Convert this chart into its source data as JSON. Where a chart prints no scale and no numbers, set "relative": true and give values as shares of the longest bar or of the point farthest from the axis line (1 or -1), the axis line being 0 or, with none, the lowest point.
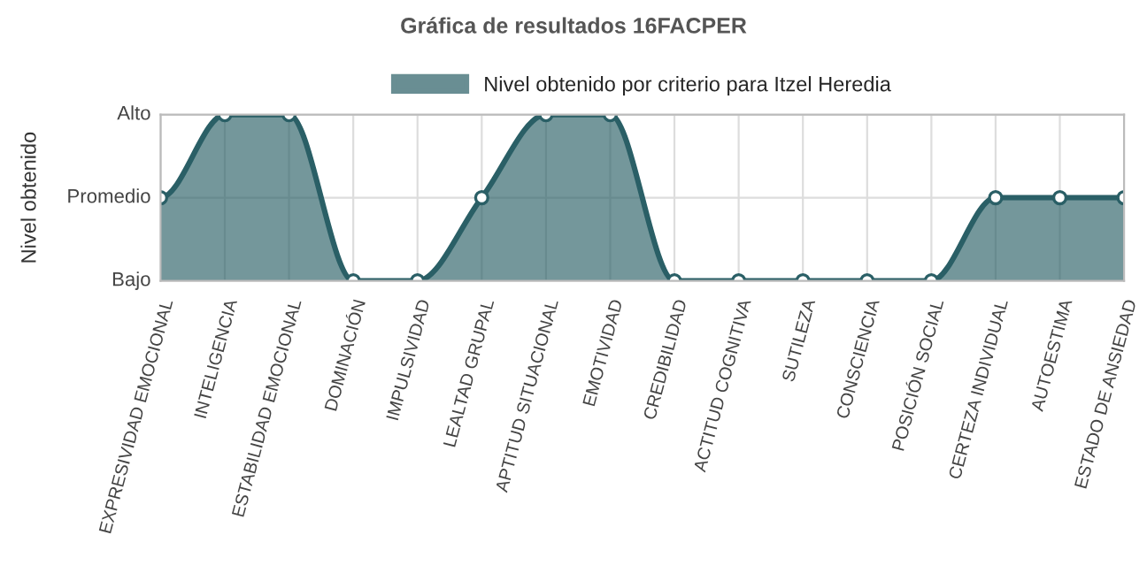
{
  "chart_data": {
    "type": "area",
    "title": "Gráfica de resultados 16FACPER",
    "ylabel": "Nivel obtenido",
    "categories": [
      "EXPRESIVIDAD EMOCIONAL",
      "INTELIGENCIA",
      "ESTABILIDAD EMOCIONAL",
      "DOMINACIÓN",
      "IMPULSIVIDAD",
      "LEALTAD GRUPAL",
      "APTITUD SITUACIONAL",
      "EMOTIVIDAD",
      "CREDIBILIDAD",
      "ACTITUD COGNITIVA",
      "SUTILEZA",
      "CONSCIENCIA",
      "POSICIÓN SOCIAL",
      "CERTEZA INDIVIDUAL",
      "AUTOESTIMA",
      "ESTADO DE ANSIEDAD"
    ],
    "series": [
      {
        "name": "Nivel obtenido por criterio para Itzel Heredia",
        "color": "#2a5f66",
        "values": [
          0.5,
          1,
          1,
          0,
          0,
          0.5,
          1,
          1,
          0,
          0,
          0,
          0,
          0,
          0.5,
          0.5,
          0.5
        ]
      }
    ],
    "relative": true,
    "annotations": [
      "Bajo",
      "Promedio",
      "Alto"
    ],
    "grid": true,
    "legend": "top",
    "marker": "circle",
    "line_style": "solid"
  }
}
